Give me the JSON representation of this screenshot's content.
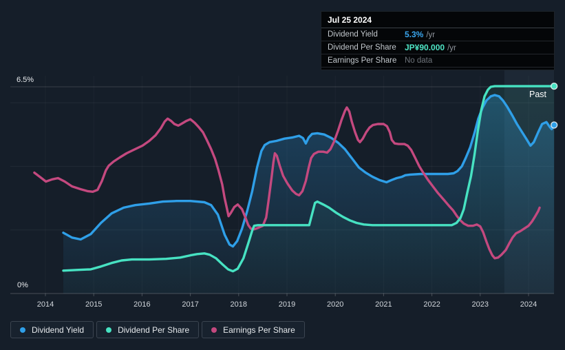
{
  "chart": {
    "past_label": "Past",
    "y_axis_top_label": "6.5%",
    "y_axis_bottom_label": "0%"
  },
  "tooltip": {
    "date": "Jul 25 2024",
    "rows": [
      {
        "label": "Dividend Yield",
        "value": "5.3%",
        "suffix": "/yr",
        "color": "#3AA6EE"
      },
      {
        "label": "Dividend Per Share",
        "value": "JP¥90.000",
        "suffix": "/yr",
        "color": "#4FE6C6"
      },
      {
        "label": "Earnings Per Share",
        "value": "No data",
        "suffix": "",
        "color": "#6d737a"
      }
    ]
  },
  "legend": {
    "items": [
      {
        "label": "Dividend Yield",
        "color": "#2F9FE8"
      },
      {
        "label": "Dividend Per Share",
        "color": "#47E2C2"
      },
      {
        "label": "Earnings Per Share",
        "color": "#C4497F"
      }
    ]
  },
  "chart_data": {
    "type": "line",
    "title": "Dividend Yield / Dividend Per Share / Earnings Per Share history",
    "xlabel": "",
    "ylabel": "",
    "ylim": [
      0,
      6.5
    ],
    "x_range": [
      2013.27,
      2024.53
    ],
    "y_unit": "percent_axis",
    "y_gridlines_pct": [
      2,
      4,
      6
    ],
    "top_line_pct": 6.5,
    "x_tick_years": [
      2014,
      2015,
      2016,
      2017,
      2018,
      2019,
      2020,
      2021,
      2022,
      2023,
      2024
    ],
    "x_tick_labels": [
      "2014",
      "2015",
      "2016",
      "2017",
      "2018",
      "2019",
      "2020",
      "2021",
      "2022",
      "2023",
      "2024"
    ],
    "past_start_year": 2023.5,
    "legend_position": "bottom-left",
    "grid": true,
    "series": [
      {
        "name": "Dividend Yield",
        "color": "#2F9FE8",
        "values_unit": "percent_axis",
        "fill": true,
        "end_marker": true,
        "points": [
          [
            2014.37,
            1.91
          ],
          [
            2014.55,
            1.76
          ],
          [
            2014.73,
            1.7
          ],
          [
            2014.94,
            1.87
          ],
          [
            2015.15,
            2.22
          ],
          [
            2015.37,
            2.52
          ],
          [
            2015.62,
            2.7
          ],
          [
            2015.86,
            2.78
          ],
          [
            2016.15,
            2.83
          ],
          [
            2016.43,
            2.89
          ],
          [
            2016.72,
            2.91
          ],
          [
            2017.0,
            2.91
          ],
          [
            2017.29,
            2.87
          ],
          [
            2017.43,
            2.78
          ],
          [
            2017.57,
            2.48
          ],
          [
            2017.71,
            1.85
          ],
          [
            2017.81,
            1.54
          ],
          [
            2017.88,
            1.48
          ],
          [
            2017.97,
            1.65
          ],
          [
            2018.07,
            2.04
          ],
          [
            2018.18,
            2.61
          ],
          [
            2018.28,
            3.22
          ],
          [
            2018.38,
            3.96
          ],
          [
            2018.47,
            4.48
          ],
          [
            2018.54,
            4.67
          ],
          [
            2018.64,
            4.76
          ],
          [
            2018.78,
            4.8
          ],
          [
            2018.95,
            4.87
          ],
          [
            2019.12,
            4.91
          ],
          [
            2019.25,
            4.96
          ],
          [
            2019.33,
            4.89
          ],
          [
            2019.39,
            4.72
          ],
          [
            2019.45,
            4.91
          ],
          [
            2019.52,
            5.02
          ],
          [
            2019.63,
            5.04
          ],
          [
            2019.77,
            5.0
          ],
          [
            2019.92,
            4.89
          ],
          [
            2020.06,
            4.74
          ],
          [
            2020.2,
            4.54
          ],
          [
            2020.34,
            4.26
          ],
          [
            2020.49,
            3.96
          ],
          [
            2020.63,
            3.8
          ],
          [
            2020.77,
            3.67
          ],
          [
            2020.91,
            3.57
          ],
          [
            2021.06,
            3.5
          ],
          [
            2021.17,
            3.57
          ],
          [
            2021.27,
            3.63
          ],
          [
            2021.38,
            3.67
          ],
          [
            2021.45,
            3.72
          ],
          [
            2021.55,
            3.74
          ],
          [
            2021.77,
            3.76
          ],
          [
            2022.05,
            3.76
          ],
          [
            2022.33,
            3.76
          ],
          [
            2022.45,
            3.78
          ],
          [
            2022.53,
            3.85
          ],
          [
            2022.62,
            4.0
          ],
          [
            2022.7,
            4.26
          ],
          [
            2022.79,
            4.59
          ],
          [
            2022.88,
            5.04
          ],
          [
            2022.96,
            5.5
          ],
          [
            2023.05,
            5.85
          ],
          [
            2023.13,
            6.07
          ],
          [
            2023.22,
            6.2
          ],
          [
            2023.3,
            6.24
          ],
          [
            2023.39,
            6.2
          ],
          [
            2023.47,
            6.07
          ],
          [
            2023.56,
            5.87
          ],
          [
            2023.66,
            5.61
          ],
          [
            2023.76,
            5.33
          ],
          [
            2023.86,
            5.09
          ],
          [
            2023.96,
            4.85
          ],
          [
            2024.04,
            4.65
          ],
          [
            2024.11,
            4.76
          ],
          [
            2024.2,
            5.07
          ],
          [
            2024.28,
            5.33
          ],
          [
            2024.37,
            5.39
          ],
          [
            2024.44,
            5.24
          ],
          [
            2024.48,
            5.17
          ],
          [
            2024.53,
            5.3
          ]
        ]
      },
      {
        "name": "Dividend Per Share",
        "color": "#47E2C2",
        "values_unit": "percent_axis",
        "fill": true,
        "end_marker": true,
        "points": [
          [
            2014.37,
            0.72
          ],
          [
            2014.65,
            0.74
          ],
          [
            2014.94,
            0.76
          ],
          [
            2015.15,
            0.85
          ],
          [
            2015.37,
            0.96
          ],
          [
            2015.58,
            1.04
          ],
          [
            2015.79,
            1.07
          ],
          [
            2016.15,
            1.07
          ],
          [
            2016.5,
            1.09
          ],
          [
            2016.79,
            1.13
          ],
          [
            2017.0,
            1.2
          ],
          [
            2017.14,
            1.24
          ],
          [
            2017.29,
            1.26
          ],
          [
            2017.4,
            1.22
          ],
          [
            2017.53,
            1.11
          ],
          [
            2017.67,
            0.91
          ],
          [
            2017.78,
            0.76
          ],
          [
            2017.88,
            0.7
          ],
          [
            2017.98,
            0.78
          ],
          [
            2018.1,
            1.11
          ],
          [
            2018.21,
            1.63
          ],
          [
            2018.28,
            1.98
          ],
          [
            2018.32,
            2.13
          ],
          [
            2018.4,
            2.15
          ],
          [
            2019.0,
            2.15
          ],
          [
            2019.46,
            2.15
          ],
          [
            2019.52,
            2.5
          ],
          [
            2019.58,
            2.85
          ],
          [
            2019.63,
            2.89
          ],
          [
            2019.75,
            2.8
          ],
          [
            2019.87,
            2.7
          ],
          [
            2020.02,
            2.54
          ],
          [
            2020.16,
            2.41
          ],
          [
            2020.3,
            2.3
          ],
          [
            2020.44,
            2.22
          ],
          [
            2020.59,
            2.17
          ],
          [
            2020.77,
            2.15
          ],
          [
            2021.5,
            2.15
          ],
          [
            2022.41,
            2.15
          ],
          [
            2022.51,
            2.22
          ],
          [
            2022.59,
            2.37
          ],
          [
            2022.66,
            2.65
          ],
          [
            2022.73,
            3.15
          ],
          [
            2022.81,
            3.7
          ],
          [
            2022.88,
            4.35
          ],
          [
            2022.95,
            5.11
          ],
          [
            2023.02,
            5.76
          ],
          [
            2023.09,
            6.2
          ],
          [
            2023.16,
            6.41
          ],
          [
            2023.22,
            6.5
          ],
          [
            2023.3,
            6.52
          ],
          [
            2024.53,
            6.52
          ]
        ]
      },
      {
        "name": "Earnings Per Share",
        "color": "#C4497F",
        "values_unit": "percent_axis",
        "fill": false,
        "end_marker": false,
        "points": [
          [
            2013.77,
            3.8
          ],
          [
            2013.9,
            3.65
          ],
          [
            2014.01,
            3.52
          ],
          [
            2014.14,
            3.59
          ],
          [
            2014.26,
            3.63
          ],
          [
            2014.4,
            3.52
          ],
          [
            2014.55,
            3.37
          ],
          [
            2014.73,
            3.28
          ],
          [
            2014.87,
            3.22
          ],
          [
            2014.98,
            3.2
          ],
          [
            2015.08,
            3.26
          ],
          [
            2015.17,
            3.54
          ],
          [
            2015.25,
            3.87
          ],
          [
            2015.31,
            4.02
          ],
          [
            2015.41,
            4.15
          ],
          [
            2015.54,
            4.28
          ],
          [
            2015.68,
            4.41
          ],
          [
            2015.83,
            4.52
          ],
          [
            2016.01,
            4.65
          ],
          [
            2016.15,
            4.8
          ],
          [
            2016.28,
            4.98
          ],
          [
            2016.39,
            5.2
          ],
          [
            2016.47,
            5.41
          ],
          [
            2016.53,
            5.5
          ],
          [
            2016.6,
            5.43
          ],
          [
            2016.67,
            5.33
          ],
          [
            2016.75,
            5.28
          ],
          [
            2016.83,
            5.35
          ],
          [
            2016.92,
            5.43
          ],
          [
            2017.0,
            5.48
          ],
          [
            2017.09,
            5.37
          ],
          [
            2017.17,
            5.24
          ],
          [
            2017.26,
            5.07
          ],
          [
            2017.34,
            4.83
          ],
          [
            2017.43,
            4.54
          ],
          [
            2017.51,
            4.24
          ],
          [
            2017.58,
            3.89
          ],
          [
            2017.66,
            3.43
          ],
          [
            2017.71,
            3.0
          ],
          [
            2017.76,
            2.65
          ],
          [
            2017.79,
            2.43
          ],
          [
            2017.84,
            2.54
          ],
          [
            2017.91,
            2.72
          ],
          [
            2017.98,
            2.8
          ],
          [
            2018.07,
            2.65
          ],
          [
            2018.14,
            2.39
          ],
          [
            2018.2,
            2.15
          ],
          [
            2018.25,
            2.04
          ],
          [
            2018.32,
            2.02
          ],
          [
            2018.41,
            2.07
          ],
          [
            2018.5,
            2.13
          ],
          [
            2018.57,
            2.39
          ],
          [
            2018.62,
            2.93
          ],
          [
            2018.68,
            3.63
          ],
          [
            2018.72,
            4.13
          ],
          [
            2018.75,
            4.41
          ],
          [
            2018.79,
            4.33
          ],
          [
            2018.85,
            4.02
          ],
          [
            2018.92,
            3.7
          ],
          [
            2019.01,
            3.46
          ],
          [
            2019.11,
            3.24
          ],
          [
            2019.19,
            3.13
          ],
          [
            2019.25,
            3.09
          ],
          [
            2019.32,
            3.22
          ],
          [
            2019.39,
            3.54
          ],
          [
            2019.45,
            3.96
          ],
          [
            2019.5,
            4.26
          ],
          [
            2019.56,
            4.39
          ],
          [
            2019.65,
            4.46
          ],
          [
            2019.75,
            4.46
          ],
          [
            2019.83,
            4.43
          ],
          [
            2019.9,
            4.54
          ],
          [
            2019.97,
            4.76
          ],
          [
            2020.06,
            5.13
          ],
          [
            2020.13,
            5.46
          ],
          [
            2020.2,
            5.74
          ],
          [
            2020.24,
            5.85
          ],
          [
            2020.29,
            5.72
          ],
          [
            2020.34,
            5.41
          ],
          [
            2020.41,
            5.07
          ],
          [
            2020.47,
            4.83
          ],
          [
            2020.51,
            4.76
          ],
          [
            2020.57,
            4.87
          ],
          [
            2020.64,
            5.07
          ],
          [
            2020.71,
            5.22
          ],
          [
            2020.78,
            5.3
          ],
          [
            2020.88,
            5.33
          ],
          [
            2021.0,
            5.33
          ],
          [
            2021.07,
            5.26
          ],
          [
            2021.13,
            5.07
          ],
          [
            2021.17,
            4.83
          ],
          [
            2021.23,
            4.72
          ],
          [
            2021.31,
            4.7
          ],
          [
            2021.43,
            4.7
          ],
          [
            2021.5,
            4.65
          ],
          [
            2021.57,
            4.52
          ],
          [
            2021.65,
            4.28
          ],
          [
            2021.74,
            4.0
          ],
          [
            2021.82,
            3.8
          ],
          [
            2021.92,
            3.57
          ],
          [
            2022.02,
            3.37
          ],
          [
            2022.12,
            3.17
          ],
          [
            2022.24,
            2.96
          ],
          [
            2022.34,
            2.78
          ],
          [
            2022.44,
            2.61
          ],
          [
            2022.52,
            2.43
          ],
          [
            2022.59,
            2.3
          ],
          [
            2022.66,
            2.2
          ],
          [
            2022.75,
            2.13
          ],
          [
            2022.85,
            2.13
          ],
          [
            2022.93,
            2.17
          ],
          [
            2023.0,
            2.11
          ],
          [
            2023.06,
            1.93
          ],
          [
            2023.13,
            1.63
          ],
          [
            2023.19,
            1.39
          ],
          [
            2023.25,
            1.2
          ],
          [
            2023.3,
            1.11
          ],
          [
            2023.37,
            1.13
          ],
          [
            2023.44,
            1.22
          ],
          [
            2023.53,
            1.37
          ],
          [
            2023.6,
            1.57
          ],
          [
            2023.67,
            1.76
          ],
          [
            2023.74,
            1.89
          ],
          [
            2023.83,
            1.96
          ],
          [
            2023.91,
            2.04
          ],
          [
            2024.0,
            2.13
          ],
          [
            2024.07,
            2.26
          ],
          [
            2024.14,
            2.43
          ],
          [
            2024.2,
            2.59
          ],
          [
            2024.23,
            2.7
          ]
        ]
      }
    ],
    "colors": {
      "background": "#151E29",
      "grid_h": "rgba(255,255,255,0.06)",
      "grid_v": "rgba(255,255,255,0.035)",
      "top_line": "rgba(255,255,255,0.15)",
      "axis_line": "rgba(255,255,255,0.22)",
      "past_region": "rgba(130,168,205,0.08)",
      "axis_text": "#d2d7dc",
      "y_label_text": "#e9ecef"
    }
  }
}
